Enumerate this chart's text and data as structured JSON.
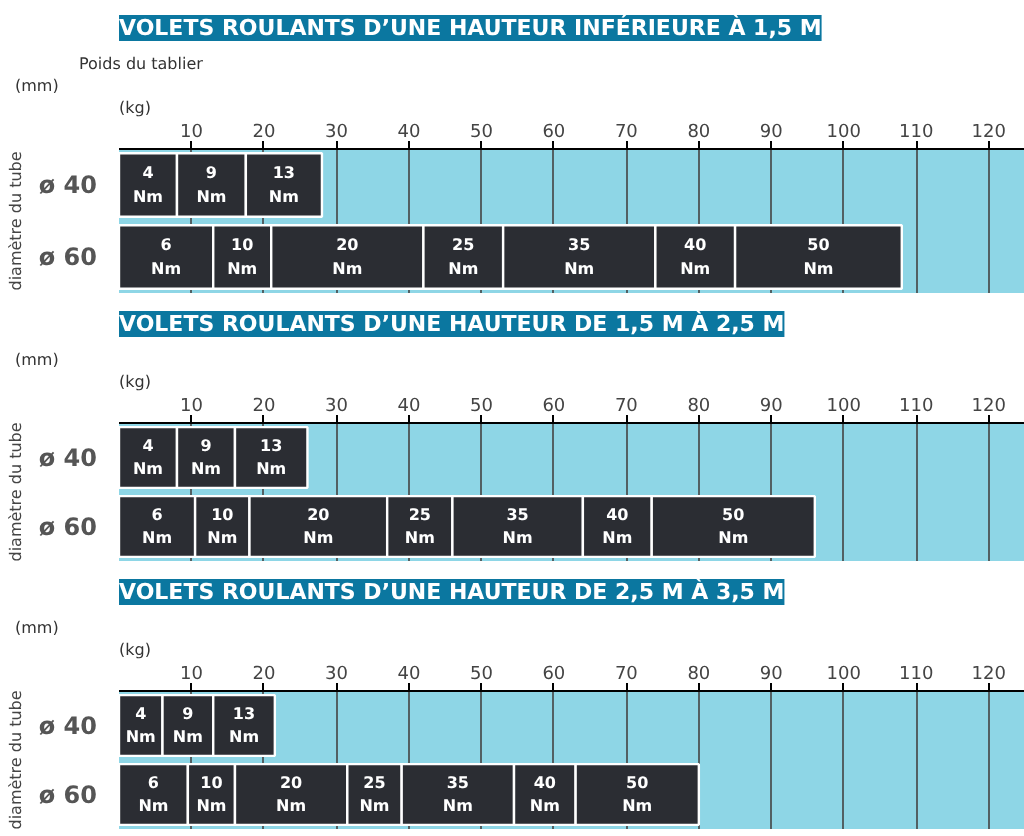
{
  "chart_data": [
    {
      "type": "bar",
      "orientation": "horizontal",
      "stacked": true,
      "title": "VOLETS ROULANTS D’UNE HAUTEUR INFÉRIEURE À 1,5 M",
      "xlabel": "Poids du tablier",
      "ylabel": "diamètre du tube",
      "categories": [
        "ø 40",
        "ø 60"
      ],
      "xlim": [
        0,
        125
      ],
      "xticks": [
        10,
        20,
        30,
        40,
        50,
        60,
        70,
        80,
        90,
        100,
        110,
        120
      ],
      "grid": "x",
      "annotations": [
        "(kg)",
        "(mm)",
        {
          "text": "4 Nm",
          "x": 4,
          "y": "ø 40"
        },
        {
          "text": "9 Nm",
          "x": 12.75,
          "y": "ø 40"
        },
        {
          "text": "13 Nm",
          "x": 22.75,
          "y": "ø 40"
        },
        {
          "text": "6 Nm",
          "x": 6.5,
          "y": "ø 60"
        },
        {
          "text": "10 Nm",
          "x": 17,
          "y": "ø 60"
        },
        {
          "text": "20 Nm",
          "x": 31.5,
          "y": "ø 60"
        },
        {
          "text": "25 Nm",
          "x": 47.5,
          "y": "ø 60"
        },
        {
          "text": "35 Nm",
          "x": 63.5,
          "y": "ø 60"
        },
        {
          "text": "40 Nm",
          "x": 79.5,
          "y": "ø 60"
        },
        {
          "text": "50 Nm",
          "x": 96.5,
          "y": "ø 60"
        }
      ],
      "series": [
        {
          "color": "#2b2d33",
          "values": [
            8,
            13
          ]
        },
        {
          "color": "#2b2d33",
          "values": [
            9.5,
            8
          ]
        },
        {
          "color": "#2b2d33",
          "values": [
            10.5,
            21
          ]
        },
        {
          "color": "#2b2d33",
          "values": [
            null,
            11
          ]
        },
        {
          "color": "#2b2d33",
          "values": [
            null,
            21
          ]
        },
        {
          "color": "#2b2d33",
          "values": [
            null,
            11
          ]
        },
        {
          "color": "#2b2d33",
          "values": [
            null,
            23
          ]
        }
      ]
    },
    {
      "type": "bar",
      "orientation": "horizontal",
      "stacked": true,
      "title": "VOLETS ROULANTS D’UNE HAUTEUR DE 1,5 M À 2,5 M",
      "ylabel": "diamètre du tube",
      "categories": [
        "ø 40",
        "ø 60"
      ],
      "xlim": [
        0,
        125
      ],
      "xticks": [
        10,
        20,
        30,
        40,
        50,
        60,
        70,
        80,
        90,
        100,
        110,
        120
      ],
      "grid": "x",
      "annotations": [
        "(kg)",
        "(mm)",
        {
          "text": "4 Nm",
          "x": 4,
          "y": "ø 40"
        },
        {
          "text": "9 Nm",
          "x": 12,
          "y": "ø 40"
        },
        {
          "text": "13 Nm",
          "x": 21,
          "y": "ø 40"
        },
        {
          "text": "6 Nm",
          "x": 5.25,
          "y": "ø 60"
        },
        {
          "text": "10 Nm",
          "x": 14.25,
          "y": "ø 60"
        },
        {
          "text": "20 Nm",
          "x": 27.5,
          "y": "ø 60"
        },
        {
          "text": "25 Nm",
          "x": 41.5,
          "y": "ø 60"
        },
        {
          "text": "35 Nm",
          "x": 55,
          "y": "ø 60"
        },
        {
          "text": "40 Nm",
          "x": 68.75,
          "y": "ø 60"
        },
        {
          "text": "50 Nm",
          "x": 84.75,
          "y": "ø 60"
        }
      ],
      "series": [
        {
          "color": "#2b2d33",
          "values": [
            8,
            10.5
          ]
        },
        {
          "color": "#2b2d33",
          "values": [
            8,
            7.5
          ]
        },
        {
          "color": "#2b2d33",
          "values": [
            10,
            19
          ]
        },
        {
          "color": "#2b2d33",
          "values": [
            null,
            9
          ]
        },
        {
          "color": "#2b2d33",
          "values": [
            null,
            18
          ]
        },
        {
          "color": "#2b2d33",
          "values": [
            null,
            9.5
          ]
        },
        {
          "color": "#2b2d33",
          "values": [
            null,
            22.5
          ]
        }
      ]
    },
    {
      "type": "bar",
      "orientation": "horizontal",
      "stacked": true,
      "title": "VOLETS ROULANTS D’UNE HAUTEUR DE 2,5 M À 3,5 M",
      "ylabel": "diamètre du tube",
      "categories": [
        "ø 40",
        "ø 60"
      ],
      "xlim": [
        0,
        125
      ],
      "xticks": [
        10,
        20,
        30,
        40,
        50,
        60,
        70,
        80,
        90,
        100,
        110,
        120
      ],
      "grid": "x",
      "annotations": [
        "(kg)",
        "(mm)",
        {
          "text": "4 Nm",
          "x": 3,
          "y": "ø 40"
        },
        {
          "text": "9 Nm",
          "x": 9.5,
          "y": "ø 40"
        },
        {
          "text": "13 Nm",
          "x": 17.25,
          "y": "ø 40"
        },
        {
          "text": "6 Nm",
          "x": 4.75,
          "y": "ø 60"
        },
        {
          "text": "10 Nm",
          "x": 12.75,
          "y": "ø 60"
        },
        {
          "text": "20 Nm",
          "x": 23.75,
          "y": "ø 60"
        },
        {
          "text": "25 Nm",
          "x": 35.25,
          "y": "ø 60"
        },
        {
          "text": "35 Nm",
          "x": 46.75,
          "y": "ø 60"
        },
        {
          "text": "40 Nm",
          "x": 58.75,
          "y": "ø 60"
        },
        {
          "text": "50 Nm",
          "x": 71.5,
          "y": "ø 60"
        }
      ],
      "series": [
        {
          "color": "#2b2d33",
          "values": [
            6,
            9.5
          ]
        },
        {
          "color": "#2b2d33",
          "values": [
            7,
            6.5
          ]
        },
        {
          "color": "#2b2d33",
          "values": [
            8.5,
            15.5
          ]
        },
        {
          "color": "#2b2d33",
          "values": [
            null,
            7.5
          ]
        },
        {
          "color": "#2b2d33",
          "values": [
            null,
            15.5
          ]
        },
        {
          "color": "#2b2d33",
          "values": [
            null,
            8.5
          ]
        },
        {
          "color": "#2b2d33",
          "values": [
            null,
            17
          ]
        }
      ]
    }
  ]
}
